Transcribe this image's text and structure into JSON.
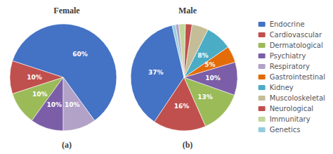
{
  "chart_data": [
    {
      "type": "pie",
      "title": "Female",
      "annotations": [
        "(a)"
      ],
      "categories": [
        "Endocrine",
        "Cardiovascular",
        "Dermatological",
        "Psychiatry",
        "Respiratory"
      ],
      "values": [
        60,
        10,
        10,
        10,
        10
      ],
      "value_labels": [
        "60%",
        "10%",
        "10%",
        "10%",
        "10%"
      ],
      "colors": [
        "#4472C4",
        "#C0504D",
        "#9BBB59",
        "#7B5EA7",
        "#B2A2C7"
      ],
      "data_labels": true,
      "legend": "right"
    },
    {
      "type": "pie",
      "title": "Male",
      "annotations": [
        "(b)"
      ],
      "categories": [
        "Endocrine",
        "Cardiovascular",
        "Dermatological",
        "Psychiatry",
        "Gastrointestinal",
        "Kidney",
        "Muscoloskeletal",
        "Neurological",
        "Immunitary",
        "Respiratory",
        "Genetics"
      ],
      "values": [
        37,
        16,
        13,
        10,
        5,
        8,
        5,
        2,
        2,
        1,
        1
      ],
      "value_labels": [
        "37%",
        "16%",
        "13%",
        "10%",
        "5%",
        "8%",
        "5%",
        null,
        null,
        null,
        null
      ],
      "colors": [
        "#4472C4",
        "#C0504D",
        "#9BBB59",
        "#7B5EA7",
        "#E36C09",
        "#4BACC6",
        "#C4BD97",
        "#C0504D",
        "#C3D69B",
        "#B2A2C7",
        "#93CDDD"
      ],
      "data_labels": true,
      "legend": "right"
    }
  ]
}
